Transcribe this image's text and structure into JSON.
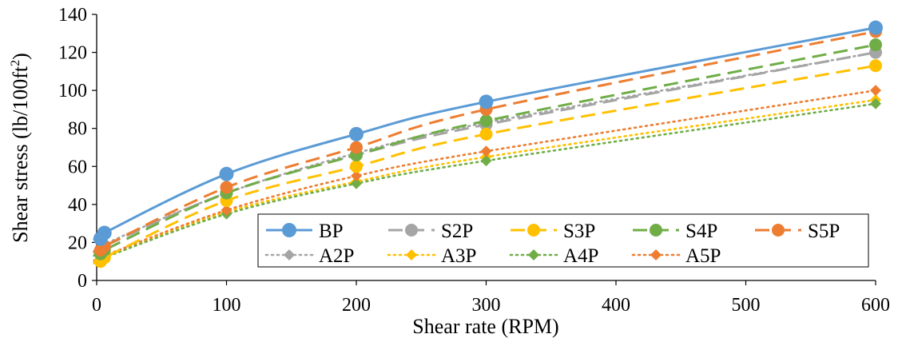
{
  "chart_data": {
    "type": "line",
    "title": "",
    "xlabel": "Shear rate (RPM)",
    "ylabel": "Shear stress (lb/100ft",
    "ylabel_sup": "2",
    "ylabel_end": ")",
    "xlim": [
      0,
      600
    ],
    "ylim": [
      0,
      140
    ],
    "x_ticks": [
      0,
      100,
      200,
      300,
      400,
      500,
      600
    ],
    "y_ticks": [
      0,
      20,
      40,
      60,
      80,
      100,
      120,
      140
    ],
    "grid": false,
    "legend_position": "bottom-right",
    "x": [
      3,
      6,
      100,
      200,
      300,
      600
    ],
    "series": [
      {
        "name": "BP",
        "color": "#5B9BD5",
        "line": "solid",
        "marker": "circle",
        "values": [
          22,
          25,
          56,
          77,
          94,
          133
        ]
      },
      {
        "name": "S2P",
        "color": "#A5A5A5",
        "line": "dashed",
        "marker": "circle",
        "values": [
          15,
          18,
          46,
          66,
          82,
          120
        ]
      },
      {
        "name": "S3P",
        "color": "#FFC000",
        "line": "dashed",
        "marker": "circle",
        "values": [
          10,
          12,
          42,
          60,
          77,
          113
        ]
      },
      {
        "name": "S4P",
        "color": "#70AD47",
        "line": "dashed",
        "marker": "circle",
        "values": [
          14,
          16,
          46,
          66,
          84,
          124
        ]
      },
      {
        "name": "S5P",
        "color": "#ED7D31",
        "line": "dashed",
        "marker": "circle",
        "values": [
          16,
          18,
          49,
          70,
          90,
          131
        ]
      },
      {
        "name": "A2P",
        "color": "#A5A5A5",
        "line": "dotted",
        "marker": "diamond",
        "values": [
          15,
          19,
          46,
          67,
          83,
          120
        ]
      },
      {
        "name": "A3P",
        "color": "#FFC000",
        "line": "dotted",
        "marker": "diamond",
        "values": [
          10,
          12,
          36,
          52,
          65,
          95
        ]
      },
      {
        "name": "A4P",
        "color": "#70AD47",
        "line": "dotted",
        "marker": "diamond",
        "values": [
          10,
          12,
          35,
          51,
          63,
          93
        ]
      },
      {
        "name": "A5P",
        "color": "#ED7D31",
        "line": "dotted",
        "marker": "diamond",
        "values": [
          11,
          13,
          37,
          55,
          68,
          100
        ]
      }
    ]
  }
}
